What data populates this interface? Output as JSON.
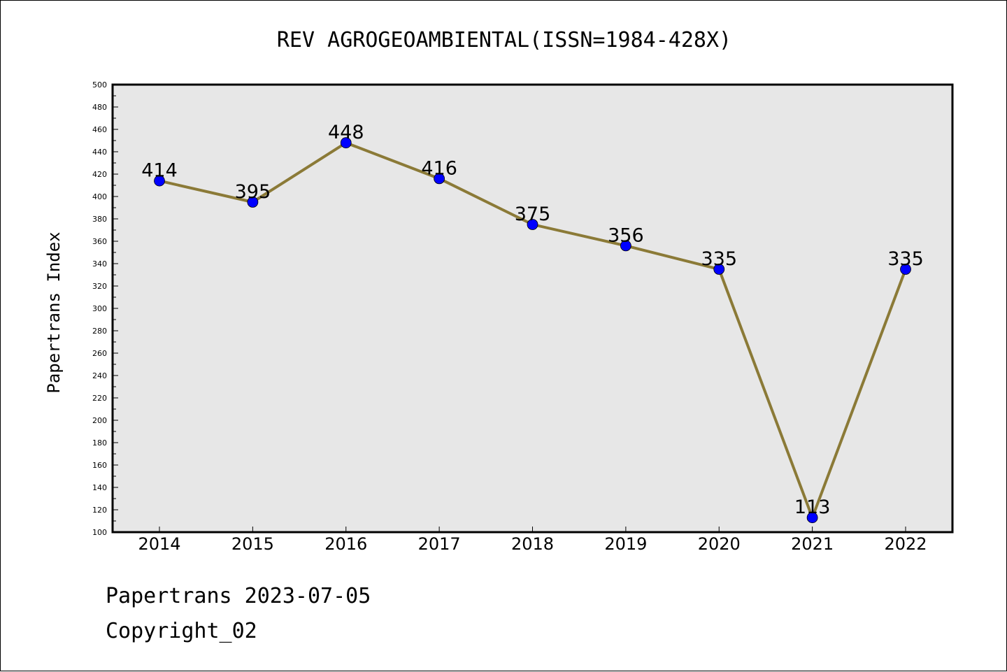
{
  "chart_data": {
    "type": "line",
    "title": "REV AGROGEOAMBIENTAL(ISSN=1984-428X)",
    "xlabel": "",
    "ylabel": "Papertrans Index",
    "categories": [
      "2014",
      "2015",
      "2016",
      "2017",
      "2018",
      "2019",
      "2020",
      "2021",
      "2022"
    ],
    "values": [
      414,
      395,
      448,
      416,
      375,
      356,
      335,
      113,
      335
    ],
    "ylim": [
      100,
      500
    ],
    "yticks": [
      100,
      120,
      140,
      160,
      180,
      200,
      220,
      240,
      260,
      280,
      300,
      320,
      340,
      360,
      380,
      400,
      420,
      440,
      460,
      480,
      500
    ],
    "grid": false,
    "data_labels": true,
    "colors": {
      "plot_background": "#e7e7e7",
      "line": "#8b7a37",
      "marker": "#0000ff"
    }
  },
  "footer": {
    "line1": "Papertrans 2023-07-05",
    "line2": "Copyright_02"
  }
}
